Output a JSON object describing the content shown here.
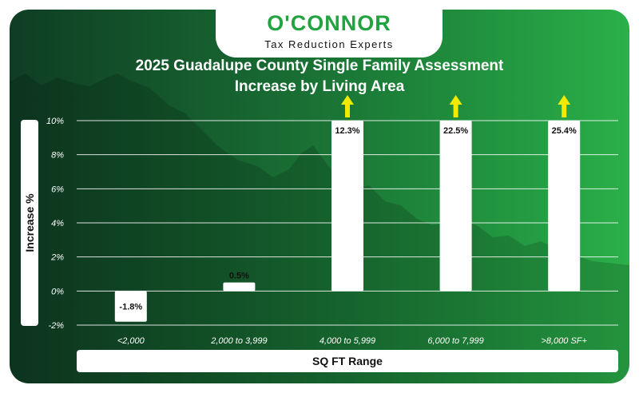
{
  "brand": {
    "name": "O'CONNOR",
    "tagline": "Tax Reduction Experts"
  },
  "chart_data": {
    "type": "bar",
    "title_lines": [
      "2025 Guadalupe County Single Family Assessment",
      "Increase by Living Area"
    ],
    "xlabel": "SQ FT Range",
    "ylabel": "Increase %",
    "categories": [
      "<2,000",
      "2,000 to 3,999",
      "4,000 to 5,999",
      "6,000 to 7,999",
      ">8,000 SF+"
    ],
    "values": [
      -1.8,
      0.5,
      12.3,
      22.5,
      25.4
    ],
    "value_labels": [
      "-1.8%",
      "0.5%",
      "12.3%",
      "22.5%",
      "25.4%"
    ],
    "ylim": [
      -2,
      10
    ],
    "yticks": [
      -2,
      0,
      2,
      4,
      6,
      8,
      10
    ],
    "ytick_labels": [
      "-2%",
      "0%",
      "2%",
      "4%",
      "6%",
      "8%",
      "10%"
    ],
    "grid": true,
    "notes": "Bars exceeding 10% are truncated at the top of the axis and marked with an upward arrow"
  },
  "colors": {
    "card_dark": "#0f3d24",
    "card_light": "#2bb04a",
    "bar": "#ffffff",
    "arrow": "#f2ea00",
    "brand_green": "#22a33f",
    "gridline": "#ffffff"
  }
}
